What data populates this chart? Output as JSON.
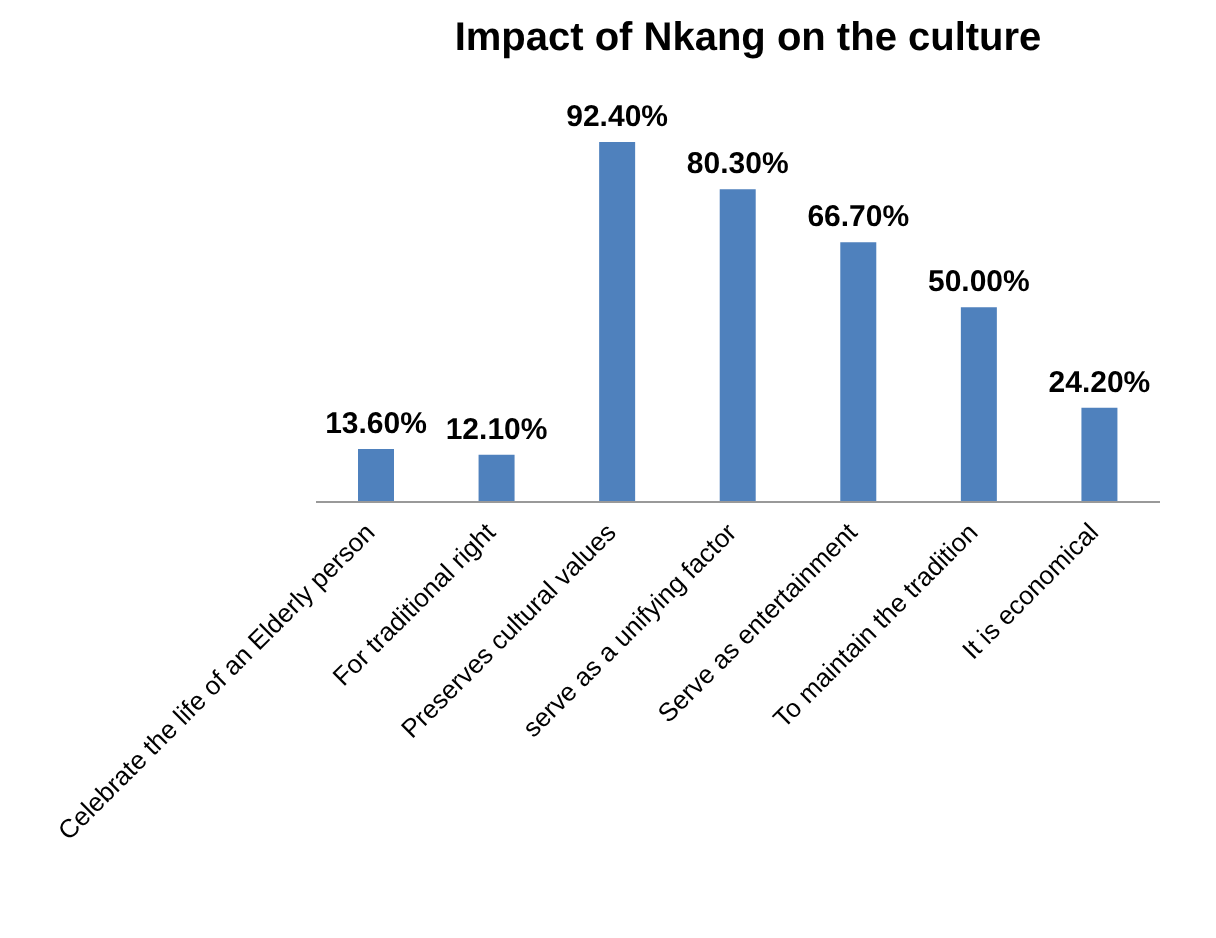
{
  "chart_data": {
    "type": "bar",
    "title": "Impact of Nkang on the culture",
    "categories": [
      "Celebrate the life of an Elderly person",
      "For traditional right",
      "Preserves  cultural values",
      "serve as a unifying factor",
      "Serve as entertainment",
      "To maintain the tradition",
      "It is economical"
    ],
    "values": [
      13.6,
      12.1,
      92.4,
      80.3,
      66.7,
      50.0,
      24.2
    ],
    "value_labels": [
      "13.60%",
      "12.10%",
      "92.40%",
      "80.30%",
      "66.70%",
      "50.00%",
      "24.20%"
    ],
    "color": "#4f81bd",
    "legend": false,
    "grid": false
  }
}
